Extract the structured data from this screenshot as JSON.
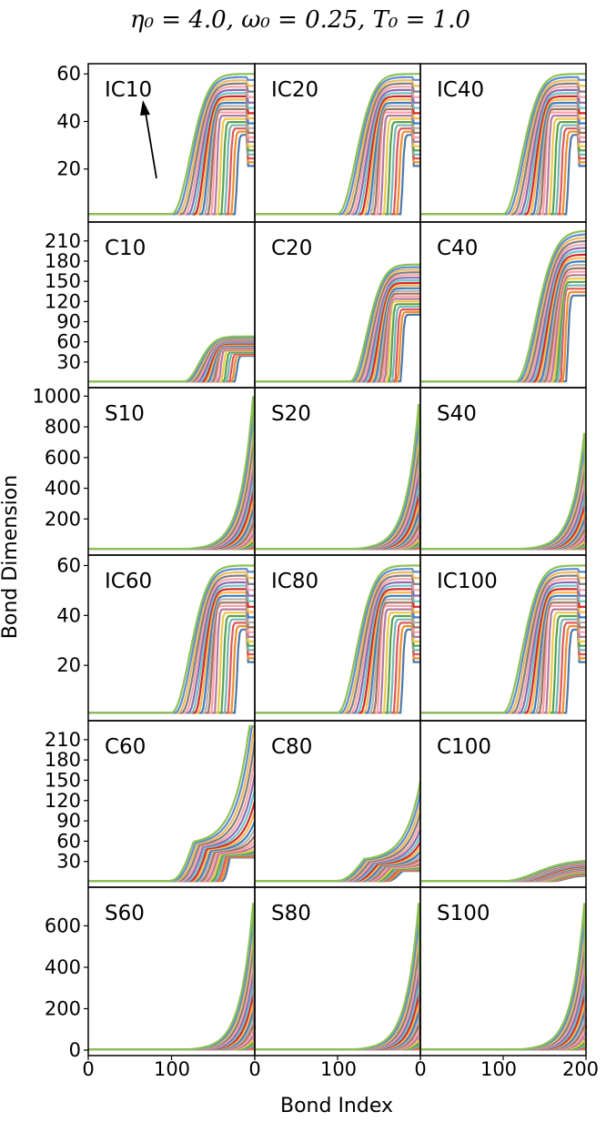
{
  "title": "η₀ = 4.0, ω₀ = 0.25, T₀ = 1.0",
  "xlabel": "Bond Index",
  "ylabel": "Bond Dimension",
  "x_tick_labels": [
    "0",
    "100",
    "200"
  ],
  "colors": [
    "#4e79a7",
    "#f28e2b",
    "#e15759",
    "#76b7b2",
    "#59a14f",
    "#edc948",
    "#b07aa1",
    "#ff9da7",
    "#9c755f",
    "#bab0ac",
    "#3d7fc1",
    "#ffb74d",
    "#d62728",
    "#6ec6c6",
    "#8c6bb1",
    "#f6a5a5",
    "#7f7f7f",
    "#f0b85c",
    "#5b8dd6",
    "#8cc152"
  ],
  "chart_data": {
    "type": "line",
    "title": "η₀ = 4.0, ω₀ = 0.25, T₀ = 1.0",
    "xlabel": "Bond Index",
    "ylabel": "Bond Dimension",
    "xlim": [
      0,
      200
    ],
    "grid": false,
    "legend": "none",
    "note_arrow": "arrow in panel IC10 pointing up-left",
    "rows": [
      {
        "ylim": [
          0,
          62
        ],
        "yticks": [
          20,
          40,
          60
        ],
        "panels": [
          {
            "label": "IC10",
            "peak": 60,
            "x_start": 100,
            "x_peak": 155,
            "kind": "ic"
          },
          {
            "label": "IC20",
            "peak": 60,
            "x_start": 100,
            "x_peak": 155,
            "kind": "ic"
          },
          {
            "label": "IC40",
            "peak": 60,
            "x_start": 100,
            "x_peak": 155,
            "kind": "ic"
          }
        ]
      },
      {
        "ylim": [
          0,
          230
        ],
        "yticks": [
          30,
          60,
          90,
          120,
          150,
          180,
          210
        ],
        "panels": [
          {
            "label": "C10",
            "peak": 68,
            "x_start": 115,
            "x_peak": 160,
            "kind": "c"
          },
          {
            "label": "C20",
            "peak": 175,
            "x_start": 115,
            "x_peak": 165,
            "kind": "c"
          },
          {
            "label": "C40",
            "peak": 225,
            "x_start": 115,
            "x_peak": 175,
            "kind": "c"
          }
        ]
      },
      {
        "ylim": [
          0,
          1020
        ],
        "yticks": [
          200,
          400,
          600,
          800,
          1000
        ],
        "panels": [
          {
            "label": "S10",
            "peak": 1000,
            "kind": "s"
          },
          {
            "label": "S20",
            "peak": 950,
            "kind": "s"
          },
          {
            "label": "S40",
            "peak": 760,
            "kind": "s"
          }
        ]
      },
      {
        "ylim": [
          0,
          62
        ],
        "yticks": [
          20,
          40,
          60
        ],
        "panels": [
          {
            "label": "IC60",
            "peak": 60,
            "x_start": 100,
            "x_peak": 155,
            "kind": "ic"
          },
          {
            "label": "IC80",
            "peak": 60,
            "x_start": 100,
            "x_peak": 155,
            "kind": "ic"
          },
          {
            "label": "IC100",
            "peak": 60,
            "x_start": 100,
            "x_peak": 155,
            "kind": "ic"
          }
        ]
      },
      {
        "ylim": [
          0,
          230
        ],
        "yticks": [
          30,
          60,
          90,
          120,
          150,
          180,
          210
        ],
        "panels": [
          {
            "label": "C60",
            "peak": 225,
            "x_start": 100,
            "x_peak": 190,
            "kind": "c2"
          },
          {
            "label": "C80",
            "peak": 105,
            "x_start": 100,
            "x_peak": 198,
            "kind": "c3"
          },
          {
            "label": "C100",
            "peak": 32,
            "x_start": 100,
            "x_peak": 198,
            "kind": "c4"
          }
        ]
      },
      {
        "ylim": [
          0,
          760
        ],
        "yticks": [
          0,
          200,
          400,
          600
        ],
        "panels": [
          {
            "label": "S60",
            "peak": 710,
            "kind": "s"
          },
          {
            "label": "S80",
            "peak": 710,
            "kind": "s"
          },
          {
            "label": "S100",
            "peak": 710,
            "kind": "s"
          }
        ]
      }
    ]
  }
}
